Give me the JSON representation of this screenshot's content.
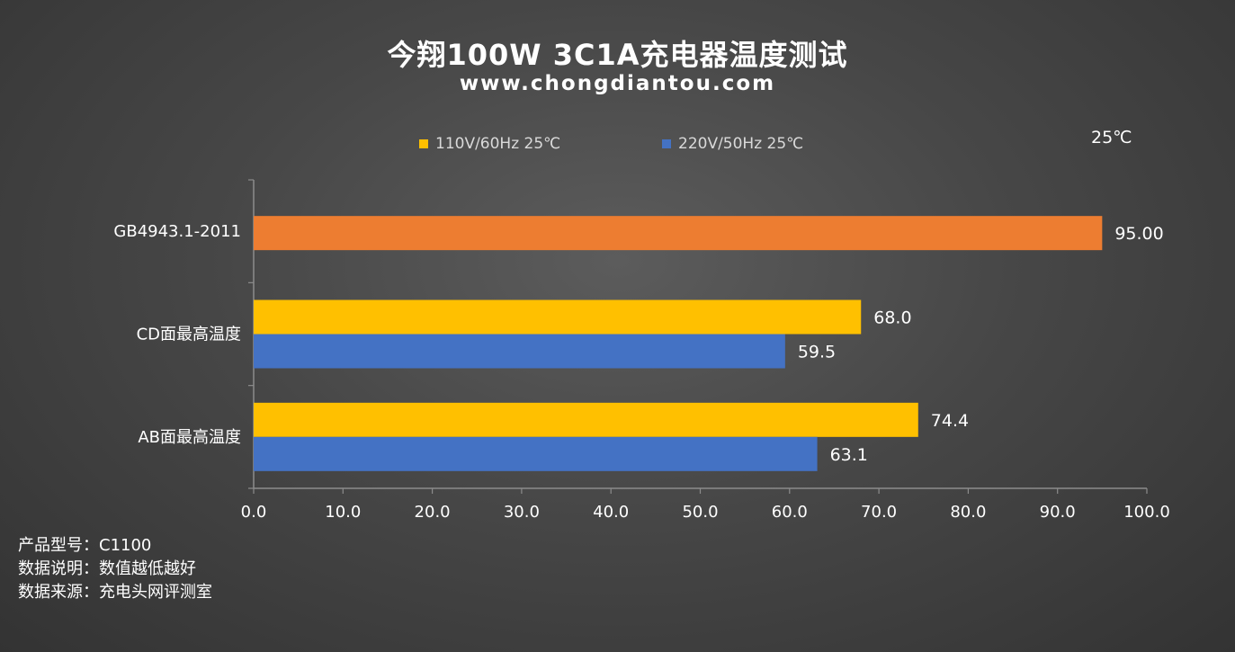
{
  "header": {
    "title": "今翔100W 3C1A充电器温度测试",
    "subtitle": "www.chongdiantou.com",
    "unit_label": "25℃"
  },
  "legend": [
    {
      "label": "110V/60Hz 25℃",
      "color": "#FFC000"
    },
    {
      "label": "220V/50Hz 25℃",
      "color": "#4472C4"
    }
  ],
  "chart_data": {
    "type": "bar",
    "orientation": "horizontal",
    "categories": [
      "GB4943.1-2011",
      "CD面最高温度",
      "AB面最高温度"
    ],
    "series": [
      {
        "name": "110V/60Hz 25℃",
        "color": "#FFC000",
        "values": [
          null,
          68.0,
          74.4
        ],
        "labels": [
          null,
          "68.0",
          "74.4"
        ]
      },
      {
        "name": "220V/50Hz 25℃",
        "color": "#4472C4",
        "values": [
          null,
          59.5,
          63.1
        ],
        "labels": [
          null,
          "59.5",
          "63.1"
        ]
      }
    ],
    "reference": {
      "category": "GB4943.1-2011",
      "value": 95.0,
      "label": "95.00",
      "color": "#ED7D31"
    },
    "xlim": [
      0,
      100
    ],
    "xticks": [
      "0.0",
      "10.0",
      "20.0",
      "30.0",
      "40.0",
      "50.0",
      "60.0",
      "70.0",
      "80.0",
      "90.0",
      "100.0"
    ],
    "grid": false,
    "legend_position": "top"
  },
  "notes": {
    "model": "产品型号：C1100",
    "explanation": "数据说明：数值越低越好",
    "source": "数据来源：充电头网评测室"
  }
}
